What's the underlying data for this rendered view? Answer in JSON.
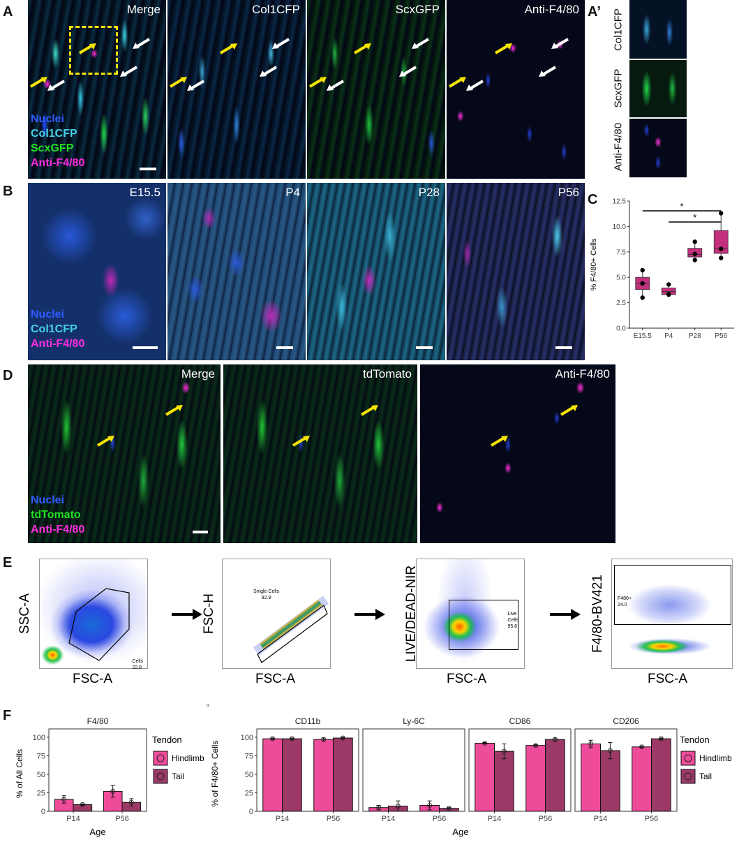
{
  "panel_letters": {
    "a": "A",
    "a_prime": "A’",
    "b": "B",
    "c": "C",
    "d": "D",
    "e": "E",
    "f": "F"
  },
  "panel_a": {
    "titles": [
      "Merge",
      "Col1CFP",
      "ScxGFP",
      "Anti-F4/80"
    ],
    "legend": [
      {
        "text": "Nuclei",
        "color": "#2f5bff"
      },
      {
        "text": "Col1CFP",
        "color": "#47d0e6"
      },
      {
        "text": "ScxGFP",
        "color": "#22e022"
      },
      {
        "text": "Anti-F4/80",
        "color": "#ff2fe0"
      }
    ],
    "inset_labels": [
      "Col1CFP",
      "ScxGFP",
      "Anti-F4/80"
    ]
  },
  "panel_b": {
    "titles": [
      "E15.5",
      "P4",
      "P28",
      "P56"
    ],
    "legend": [
      {
        "text": "Nuclei",
        "color": "#2f5bff"
      },
      {
        "text": "Col1CFP",
        "color": "#47d0e6"
      },
      {
        "text": "Anti-F4/80",
        "color": "#ff2fe0"
      }
    ]
  },
  "panel_d": {
    "titles": [
      "Merge",
      "tdTomato",
      "Anti-F4/80"
    ],
    "legend": [
      {
        "text": "Nuclei",
        "color": "#2f5bff"
      },
      {
        "text": "tdTomato",
        "color": "#22e022"
      },
      {
        "text": "Anti-F4/80",
        "color": "#ff2fe0"
      }
    ]
  },
  "panel_e": {
    "plots": [
      {
        "ylabel": "SSC-A",
        "xlabel": "FSC-A",
        "gate_name": "Cells",
        "gate_value": "22.8"
      },
      {
        "ylabel": "FSC-H",
        "xlabel": "FSC-A",
        "gate_name": "Single Cells",
        "gate_value": "92.9"
      },
      {
        "ylabel": "LIVE/DEAD-NIR",
        "xlabel": "FSC-A",
        "gate_name": "Live Cells",
        "gate_value": "95.6"
      },
      {
        "ylabel": "F4/80-BV421",
        "xlabel": "FSC-A",
        "gate_name": "F480+",
        "gate_value": "24.0"
      }
    ],
    "stray_mark": "o"
  },
  "chart_data": [
    {
      "type": "box",
      "id": "C",
      "ylabel": "% F4/80+ Cells",
      "categories": [
        "E15.5",
        "P4",
        "P28",
        "P56"
      ],
      "ylim": [
        0,
        12.5
      ],
      "yticks": [
        "0.0",
        "2.5",
        "5.0",
        "7.5",
        "10.0",
        "12.5"
      ],
      "boxes": [
        {
          "q1": 3.8,
          "median": 4.4,
          "q3": 5.0,
          "min": 3.0,
          "max": 5.7
        },
        {
          "q1": 3.3,
          "median": 3.6,
          "q3": 3.95,
          "min": 3.3,
          "max": 4.3
        },
        {
          "q1": 7.0,
          "median": 7.25,
          "q3": 7.85,
          "min": 6.7,
          "max": 8.5
        },
        {
          "q1": 7.35,
          "median": 7.8,
          "q3": 9.6,
          "min": 6.9,
          "max": 11.3
        }
      ],
      "points": [
        [
          3.0,
          4.4,
          5.7
        ],
        [
          3.3,
          3.35,
          4.3
        ],
        [
          6.7,
          7.3,
          8.5
        ],
        [
          6.9,
          7.8,
          11.3
        ]
      ],
      "significance": [
        {
          "from": "E15.5",
          "to": "P56",
          "label": "*"
        },
        {
          "from": "P4",
          "to": "P56",
          "label": "*"
        }
      ],
      "color": "#c2307e"
    },
    {
      "type": "bar",
      "id": "F-left",
      "title": "F4/80",
      "ylabel": "% of All Cells",
      "xlabel": "Age",
      "categories": [
        "P14",
        "P56"
      ],
      "ylim": [
        0,
        100
      ],
      "yticks": [
        "0",
        "25",
        "50",
        "75",
        "100"
      ],
      "series": [
        {
          "name": "Hindlimb",
          "values": [
            16,
            27
          ],
          "err": [
            5,
            8
          ]
        },
        {
          "name": "Tail",
          "values": [
            9,
            12
          ],
          "err": [
            1,
            5
          ]
        }
      ]
    },
    {
      "type": "bar",
      "id": "F-right",
      "ylabel": "% of F4/80+ Cells",
      "xlabel": "Age",
      "categories": [
        "P14",
        "P56"
      ],
      "ylim": [
        0,
        100
      ],
      "yticks": [
        "0",
        "25",
        "50",
        "75",
        "100"
      ],
      "facets": [
        {
          "title": "CD11b",
          "series": [
            {
              "name": "Hindlimb",
              "values": [
                98,
                97
              ],
              "err": [
                1,
                2
              ]
            },
            {
              "name": "Tail",
              "values": [
                98,
                99
              ],
              "err": [
                1,
                1
              ]
            }
          ]
        },
        {
          "title": "Ly-6C",
          "series": [
            {
              "name": "Hindlimb",
              "values": [
                5,
                8
              ],
              "err": [
                3,
                6
              ]
            },
            {
              "name": "Tail",
              "values": [
                7,
                4
              ],
              "err": [
                7,
                1
              ]
            }
          ]
        },
        {
          "title": "CD86",
          "series": [
            {
              "name": "Hindlimb",
              "values": [
                92,
                89
              ],
              "err": [
                1,
                1
              ]
            },
            {
              "name": "Tail",
              "values": [
                81,
                97
              ],
              "err": [
                10,
                2
              ]
            }
          ]
        },
        {
          "title": "CD206",
          "series": [
            {
              "name": "Hindlimb",
              "values": [
                91,
                87
              ],
              "err": [
                5,
                1
              ]
            },
            {
              "name": "Tail",
              "values": [
                82,
                98
              ],
              "err": [
                11,
                1
              ]
            }
          ]
        }
      ]
    }
  ],
  "legend_f": {
    "title": "Tendon",
    "items": [
      "Hindlimb",
      "Tail"
    ]
  },
  "colors": {
    "hindlimb": "#ee4c9b",
    "tail": "#9c3966",
    "box": "#c2307e"
  }
}
